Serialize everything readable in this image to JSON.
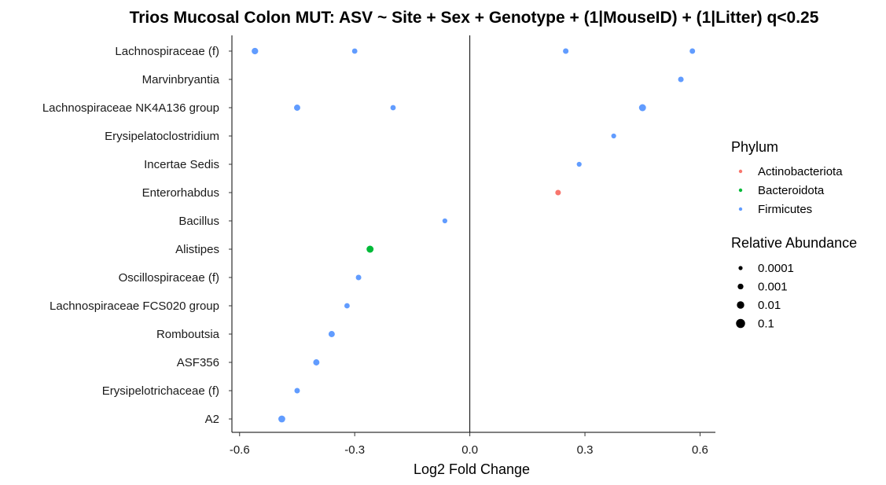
{
  "chart_data": {
    "type": "scatter",
    "title": "Trios Mucosal Colon MUT: ASV ~ Site + Sex + Genotype + (1|MouseID) + (1|Litter) q<0.25",
    "xlabel": "Log2 Fold Change",
    "ylabel": "",
    "xlim": [
      -0.62,
      0.64
    ],
    "xticks": [
      {
        "value": -0.6,
        "label": "-0.6"
      },
      {
        "value": -0.3,
        "label": "-0.3"
      },
      {
        "value": 0.0,
        "label": "0.0"
      },
      {
        "value": 0.3,
        "label": "0.3"
      },
      {
        "value": 0.6,
        "label": "0.6"
      }
    ],
    "reference_line": 0,
    "categories": [
      "Lachnospiraceae (f)",
      "Marvinbryantia",
      "Lachnospiraceae NK4A136 group",
      "Erysipelatoclostridium",
      "Incertae Sedis",
      "Enterorhabdus",
      "Bacillus",
      "Alistipes",
      "Oscillospiraceae (f)",
      "Lachnospiraceae FCS020 group",
      "Romboutsia",
      "ASF356",
      "Erysipelotrichaceae (f)",
      "A2"
    ],
    "points": [
      {
        "genus": "Lachnospiraceae (f)",
        "x": -0.56,
        "phylum": "Firmicutes",
        "abundance": 0.003
      },
      {
        "genus": "Lachnospiraceae (f)",
        "x": -0.3,
        "phylum": "Firmicutes",
        "abundance": 0.0006
      },
      {
        "genus": "Lachnospiraceae (f)",
        "x": 0.25,
        "phylum": "Firmicutes",
        "abundance": 0.0008
      },
      {
        "genus": "Lachnospiraceae (f)",
        "x": 0.58,
        "phylum": "Firmicutes",
        "abundance": 0.0007
      },
      {
        "genus": "Marvinbryantia",
        "x": 0.55,
        "phylum": "Firmicutes",
        "abundance": 0.0008
      },
      {
        "genus": "Lachnospiraceae NK4A136 group",
        "x": -0.45,
        "phylum": "Firmicutes",
        "abundance": 0.002
      },
      {
        "genus": "Lachnospiraceae NK4A136 group",
        "x": -0.2,
        "phylum": "Firmicutes",
        "abundance": 0.0006
      },
      {
        "genus": "Lachnospiraceae NK4A136 group",
        "x": 0.45,
        "phylum": "Firmicutes",
        "abundance": 0.006
      },
      {
        "genus": "Erysipelatoclostridium",
        "x": 0.375,
        "phylum": "Firmicutes",
        "abundance": 0.0003
      },
      {
        "genus": "Incertae Sedis",
        "x": 0.285,
        "phylum": "Firmicutes",
        "abundance": 0.0003
      },
      {
        "genus": "Enterorhabdus",
        "x": 0.23,
        "phylum": "Actinobacteriota",
        "abundance": 0.0008
      },
      {
        "genus": "Bacillus",
        "x": -0.065,
        "phylum": "Firmicutes",
        "abundance": 0.0003
      },
      {
        "genus": "Alistipes",
        "x": -0.26,
        "phylum": "Bacteroidota",
        "abundance": 0.006
      },
      {
        "genus": "Oscillospiraceae (f)",
        "x": -0.29,
        "phylum": "Firmicutes",
        "abundance": 0.0007
      },
      {
        "genus": "Lachnospiraceae FCS020 group",
        "x": -0.32,
        "phylum": "Firmicutes",
        "abundance": 0.0006
      },
      {
        "genus": "Romboutsia",
        "x": -0.36,
        "phylum": "Firmicutes",
        "abundance": 0.002
      },
      {
        "genus": "ASF356",
        "x": -0.4,
        "phylum": "Firmicutes",
        "abundance": 0.002
      },
      {
        "genus": "Erysipelotrichaceae (f)",
        "x": -0.45,
        "phylum": "Firmicutes",
        "abundance": 0.0007
      },
      {
        "genus": "A2",
        "x": -0.49,
        "phylum": "Firmicutes",
        "abundance": 0.005
      }
    ],
    "legend": {
      "placement": "right",
      "phylum_title": "Phylum",
      "phylum": [
        {
          "name": "Actinobacteriota",
          "color": "#F8766D"
        },
        {
          "name": "Bacteroidota",
          "color": "#00BA38"
        },
        {
          "name": "Firmicutes",
          "color": "#619CFF"
        }
      ],
      "size_title": "Relative Abundance",
      "sizes": [
        {
          "label": "0.0001",
          "value": 0.0001
        },
        {
          "label": "0.001",
          "value": 0.001
        },
        {
          "label": "0.01",
          "value": 0.01
        },
        {
          "label": "0.1",
          "value": 0.1
        }
      ]
    },
    "grid": false
  }
}
